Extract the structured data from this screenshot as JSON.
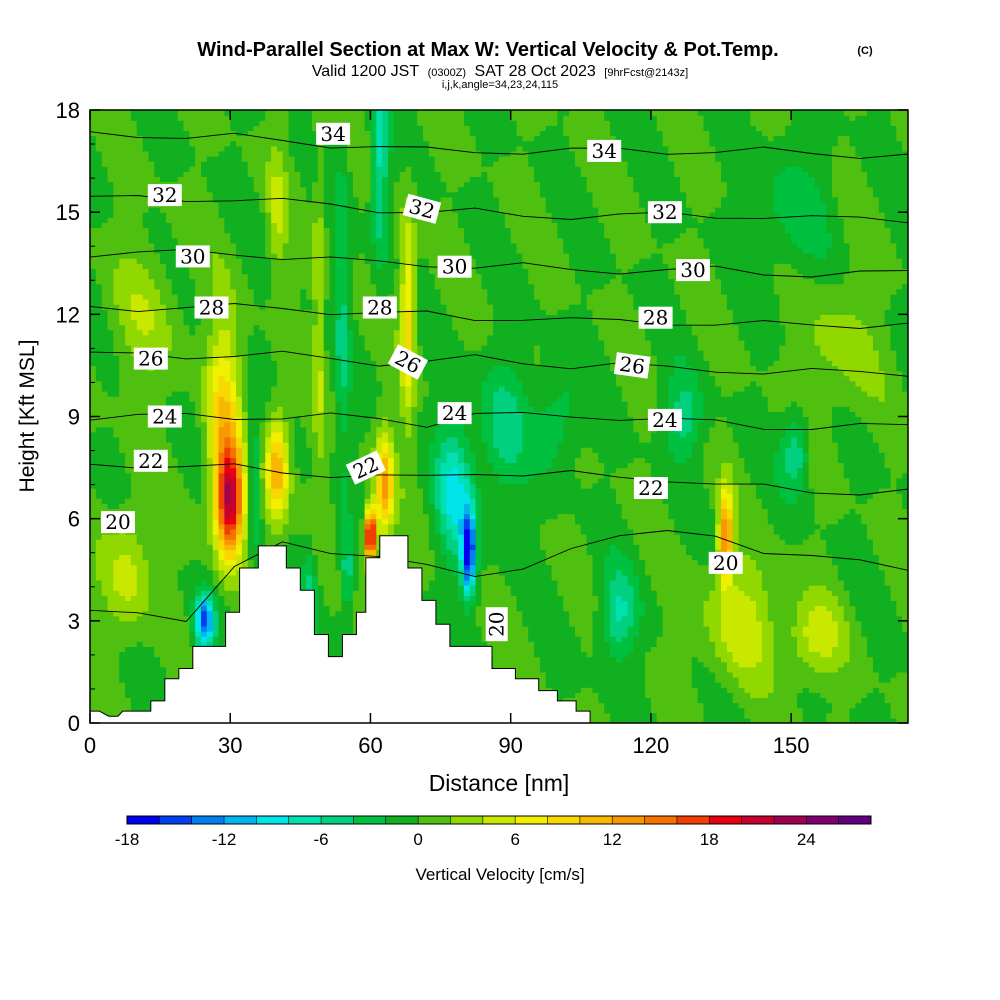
{
  "chart_data": {
    "type": "heatmap",
    "title": "Wind-Parallel Section at Max W: Vertical Velocity & Pot.Temp.",
    "title_mark": "(C)",
    "subtitle_parts": [
      "Valid 1200 JST",
      "(0300Z)",
      "SAT 28 Oct 2023",
      "[9hrFcst@2143z]"
    ],
    "subtitle2": "i,j,k,angle=34,23,24,115",
    "xlabel": "Distance [nm]",
    "ylabel": "Height [Kft MSL]",
    "xlim": [
      0,
      175
    ],
    "ylim": [
      0,
      18
    ],
    "x_ticks": [
      0,
      30,
      60,
      90,
      120,
      150
    ],
    "y_ticks": [
      0,
      3,
      6,
      9,
      12,
      15,
      18
    ],
    "grid": false,
    "colorbar": {
      "label": "Vertical Velocity [cm/s]",
      "min": -18,
      "max": 27,
      "step": 2,
      "ticks": [
        -18,
        -12,
        -6,
        0,
        6,
        12,
        18,
        24
      ],
      "colors": [
        "#0000f0",
        "#0040f0",
        "#0080f0",
        "#00b4f0",
        "#00e4ec",
        "#00e0b0",
        "#00d080",
        "#00c040",
        "#10b020",
        "#50c010",
        "#90d800",
        "#c8e800",
        "#f0f000",
        "#f8d800",
        "#f8b800",
        "#f89800",
        "#f87000",
        "#f04000",
        "#e80010",
        "#c80030",
        "#a00050",
        "#800070",
        "#600080"
      ]
    },
    "terrain": [
      [
        0,
        0.35
      ],
      [
        2,
        0.35
      ],
      [
        4,
        0.2
      ],
      [
        6,
        0.2
      ],
      [
        7,
        0.35
      ],
      [
        13,
        0.35
      ],
      [
        13,
        0.65
      ],
      [
        16,
        0.65
      ],
      [
        16,
        1.3
      ],
      [
        19,
        1.3
      ],
      [
        19,
        1.6
      ],
      [
        22,
        1.6
      ],
      [
        22,
        2.25
      ],
      [
        29,
        2.25
      ],
      [
        29,
        3.25
      ],
      [
        32,
        3.25
      ],
      [
        32,
        4.55
      ],
      [
        36,
        4.55
      ],
      [
        36,
        5.2
      ],
      [
        42,
        5.2
      ],
      [
        42,
        4.55
      ],
      [
        45,
        4.55
      ],
      [
        45,
        3.9
      ],
      [
        48,
        3.9
      ],
      [
        48,
        2.6
      ],
      [
        51,
        2.6
      ],
      [
        51,
        1.95
      ],
      [
        54,
        1.95
      ],
      [
        54,
        2.6
      ],
      [
        57,
        2.6
      ],
      [
        57,
        3.25
      ],
      [
        59,
        3.25
      ],
      [
        59,
        4.85
      ],
      [
        62,
        4.85
      ],
      [
        62,
        5.5
      ],
      [
        68,
        5.5
      ],
      [
        68,
        4.55
      ],
      [
        71,
        4.55
      ],
      [
        71,
        3.6
      ],
      [
        74,
        3.6
      ],
      [
        74,
        2.9
      ],
      [
        77,
        2.9
      ],
      [
        77,
        2.25
      ],
      [
        86,
        2.25
      ],
      [
        86,
        1.6
      ],
      [
        91,
        1.6
      ],
      [
        91,
        1.3
      ],
      [
        96,
        1.3
      ],
      [
        96,
        0.95
      ],
      [
        100,
        0.95
      ],
      [
        100,
        0.65
      ],
      [
        104,
        0.65
      ],
      [
        104,
        0.35
      ],
      [
        107,
        0.35
      ],
      [
        107,
        0
      ],
      [
        175,
        0
      ]
    ],
    "velocity_features": [
      {
        "x": 30,
        "z": 6.5,
        "w": 20,
        "sx": 3,
        "sz": 1.6
      },
      {
        "x": 28.5,
        "z": 9,
        "w": 9,
        "sx": 3.5,
        "sz": 2.8
      },
      {
        "x": 40,
        "z": 7.5,
        "w": 12,
        "sx": 2.5,
        "sz": 1.6
      },
      {
        "x": 35,
        "z": 7,
        "w": -6,
        "sx": 1.5,
        "sz": 2
      },
      {
        "x": 24.5,
        "z": 3,
        "w": -14,
        "sx": 2,
        "sz": 0.8
      },
      {
        "x": 8,
        "z": 4.5,
        "w": 5,
        "sx": 5,
        "sz": 1.8
      },
      {
        "x": 60,
        "z": 5.5,
        "w": 24,
        "sx": 1.2,
        "sz": 0.8
      },
      {
        "x": 63,
        "z": 7,
        "w": 12,
        "sx": 2,
        "sz": 1.5
      },
      {
        "x": 68,
        "z": 12,
        "w": 9,
        "sx": 1.6,
        "sz": 3
      },
      {
        "x": 81,
        "z": 5,
        "w": -17,
        "sx": 1.5,
        "sz": 1.2
      },
      {
        "x": 78,
        "z": 6.8,
        "w": -8,
        "sx": 4,
        "sz": 2
      },
      {
        "x": 62,
        "z": 16.5,
        "w": -7,
        "sx": 1.8,
        "sz": 3
      },
      {
        "x": 55,
        "z": 4.5,
        "w": -6,
        "sx": 1.5,
        "sz": 1.2
      },
      {
        "x": 47,
        "z": 3.5,
        "w": -5,
        "sx": 1.5,
        "sz": 1.5
      },
      {
        "x": 49,
        "z": 12,
        "w": 4,
        "sx": 1.2,
        "sz": 5
      },
      {
        "x": 54,
        "z": 12,
        "w": -4,
        "sx": 1.5,
        "sz": 5
      },
      {
        "x": 88,
        "z": 8.5,
        "w": -5,
        "sx": 5,
        "sz": 2
      },
      {
        "x": 136,
        "z": 5.5,
        "w": 14,
        "sx": 1.5,
        "sz": 1.3
      },
      {
        "x": 139,
        "z": 3,
        "w": 5,
        "sx": 8,
        "sz": 1.8
      },
      {
        "x": 155,
        "z": 2.5,
        "w": 5,
        "sx": 6,
        "sz": 1.2
      },
      {
        "x": 151,
        "z": 8,
        "w": -6,
        "sx": 3,
        "sz": 1.2
      },
      {
        "x": 127,
        "z": 9,
        "w": -5,
        "sx": 4,
        "sz": 1.2
      },
      {
        "x": 113,
        "z": 3.2,
        "w": -6,
        "sx": 4,
        "sz": 1.3
      },
      {
        "x": 100,
        "z": 9,
        "w": -4,
        "sx": 5,
        "sz": 1.5
      },
      {
        "x": 12,
        "z": 12,
        "w": 3,
        "sx": 8,
        "sz": 2
      },
      {
        "x": 160,
        "z": 11,
        "w": 3,
        "sx": 8,
        "sz": 2
      },
      {
        "x": 150,
        "z": 15,
        "w": -3,
        "sx": 8,
        "sz": 2
      },
      {
        "x": 40,
        "z": 15,
        "w": 4,
        "sx": 2,
        "sz": 2
      }
    ],
    "theta_contours": [
      {
        "value": 20,
        "y": [
          3.2,
          3.2,
          3.1,
          4.6,
          5.2,
          5.0,
          5.0,
          4.6,
          4.2,
          4.6,
          5.2,
          5.4,
          5.6,
          5.6,
          5.0,
          4.8,
          4.8,
          4.6
        ]
      },
      {
        "value": 22,
        "y": [
          7.6,
          7.6,
          7.5,
          7.5,
          7.4,
          7.3,
          7.2,
          7.2,
          7.4,
          7.3,
          7.3,
          7.2,
          7.2,
          7.0,
          6.9,
          6.8,
          6.8,
          6.8
        ]
      },
      {
        "value": 24,
        "y": [
          9.0,
          9.0,
          9.0,
          9.0,
          9.0,
          9.0,
          8.9,
          8.8,
          9.1,
          9.0,
          9.0,
          9.0,
          8.9,
          8.8,
          8.7,
          8.7,
          8.7,
          8.7
        ]
      },
      {
        "value": 26,
        "y": [
          10.8,
          10.8,
          10.8,
          10.8,
          10.8,
          10.7,
          10.6,
          10.6,
          10.7,
          10.6,
          10.5,
          10.5,
          10.4,
          10.4,
          10.3,
          10.3,
          10.3,
          10.3
        ]
      },
      {
        "value": 28,
        "y": [
          12.2,
          12.2,
          12.2,
          12.2,
          12.2,
          12.1,
          12.0,
          12.0,
          11.9,
          11.9,
          11.8,
          11.8,
          11.8,
          11.7,
          11.7,
          11.7,
          11.7,
          11.7
        ]
      },
      {
        "value": 30,
        "y": [
          13.8,
          13.8,
          13.8,
          13.8,
          13.7,
          13.6,
          13.5,
          13.5,
          13.4,
          13.4,
          13.3,
          13.3,
          13.3,
          13.3,
          13.2,
          13.2,
          13.2,
          13.2
        ]
      },
      {
        "value": 32,
        "y": [
          15.4,
          15.4,
          15.4,
          15.4,
          15.3,
          15.2,
          15.1,
          15.0,
          15.0,
          14.9,
          14.9,
          14.9,
          14.9,
          14.9,
          14.9,
          14.8,
          14.8,
          14.8
        ]
      },
      {
        "value": 34,
        "y": [
          17.3,
          17.3,
          17.2,
          17.2,
          17.1,
          17.0,
          16.9,
          16.8,
          16.8,
          16.8,
          16.8,
          16.8,
          16.8,
          16.8,
          16.8,
          16.7,
          16.7,
          16.7
        ]
      }
    ],
    "contour_labels": [
      {
        "text": "34",
        "x": 52,
        "z": 17.3,
        "rot": 0
      },
      {
        "text": "34",
        "x": 110,
        "z": 16.8,
        "rot": 0
      },
      {
        "text": "32",
        "x": 16,
        "z": 15.5,
        "rot": 0
      },
      {
        "text": "32",
        "x": 71,
        "z": 15.1,
        "rot": 15
      },
      {
        "text": "32",
        "x": 123,
        "z": 15.0,
        "rot": 0
      },
      {
        "text": "30",
        "x": 22,
        "z": 13.7,
        "rot": 0
      },
      {
        "text": "30",
        "x": 78,
        "z": 13.4,
        "rot": 0
      },
      {
        "text": "30",
        "x": 129,
        "z": 13.3,
        "rot": 0
      },
      {
        "text": "28",
        "x": 26,
        "z": 12.2,
        "rot": 0
      },
      {
        "text": "28",
        "x": 62,
        "z": 12.2,
        "rot": 0
      },
      {
        "text": "28",
        "x": 121,
        "z": 11.9,
        "rot": 0
      },
      {
        "text": "26",
        "x": 13,
        "z": 10.7,
        "rot": 0
      },
      {
        "text": "26",
        "x": 68,
        "z": 10.6,
        "rot": 28
      },
      {
        "text": "26",
        "x": 116,
        "z": 10.5,
        "rot": 8
      },
      {
        "text": "24",
        "x": 16,
        "z": 9.0,
        "rot": 0
      },
      {
        "text": "24",
        "x": 78,
        "z": 9.1,
        "rot": 0
      },
      {
        "text": "24",
        "x": 123,
        "z": 8.9,
        "rot": 0
      },
      {
        "text": "22",
        "x": 13,
        "z": 7.7,
        "rot": 0
      },
      {
        "text": "22",
        "x": 59,
        "z": 7.5,
        "rot": -25
      },
      {
        "text": "22",
        "x": 120,
        "z": 6.9,
        "rot": 0
      },
      {
        "text": "20",
        "x": 6,
        "z": 5.9,
        "rot": 0
      },
      {
        "text": "20",
        "x": 87,
        "z": 2.9,
        "rot": -90
      },
      {
        "text": "20",
        "x": 136,
        "z": 4.7,
        "rot": 0
      }
    ]
  }
}
